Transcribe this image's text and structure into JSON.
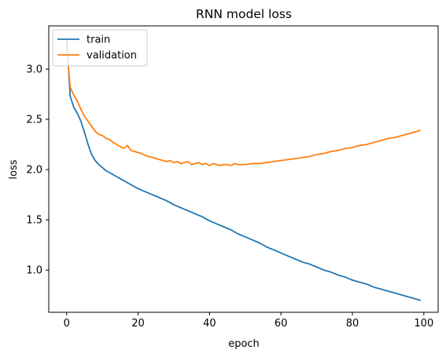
{
  "chart_data": {
    "type": "line",
    "title": "RNN model loss",
    "xlabel": "epoch",
    "ylabel": "loss",
    "xlim": [
      -5,
      104
    ],
    "ylim": [
      0.58,
      3.43
    ],
    "xticks": [
      0,
      20,
      40,
      60,
      80,
      100
    ],
    "yticks": [
      1.0,
      1.5,
      2.0,
      2.5,
      3.0
    ],
    "grid": false,
    "legend_position": "top-left",
    "series": [
      {
        "name": "train",
        "color": "#1f77b4",
        "x": [
          0,
          1,
          2,
          3,
          4,
          5,
          6,
          7,
          8,
          9,
          10,
          11,
          12,
          13,
          14,
          15,
          16,
          17,
          18,
          19,
          20,
          22,
          24,
          26,
          28,
          30,
          32,
          34,
          36,
          38,
          40,
          42,
          44,
          46,
          48,
          50,
          52,
          54,
          56,
          58,
          60,
          62,
          64,
          66,
          68,
          70,
          72,
          74,
          76,
          78,
          80,
          82,
          84,
          86,
          88,
          90,
          92,
          94,
          96,
          98,
          99
        ],
        "y": [
          3.31,
          2.73,
          2.62,
          2.56,
          2.48,
          2.37,
          2.25,
          2.15,
          2.09,
          2.05,
          2.02,
          1.99,
          1.97,
          1.95,
          1.93,
          1.91,
          1.89,
          1.87,
          1.85,
          1.83,
          1.81,
          1.78,
          1.75,
          1.72,
          1.69,
          1.65,
          1.62,
          1.59,
          1.56,
          1.53,
          1.49,
          1.46,
          1.43,
          1.4,
          1.36,
          1.33,
          1.3,
          1.27,
          1.23,
          1.2,
          1.17,
          1.14,
          1.11,
          1.08,
          1.06,
          1.03,
          1.0,
          0.98,
          0.95,
          0.93,
          0.9,
          0.88,
          0.86,
          0.83,
          0.81,
          0.79,
          0.77,
          0.75,
          0.73,
          0.71,
          0.7
        ]
      },
      {
        "name": "validation",
        "color": "#ff7f0e",
        "x": [
          0,
          1,
          2,
          3,
          4,
          5,
          6,
          7,
          8,
          9,
          10,
          11,
          12,
          13,
          14,
          15,
          16,
          17,
          18,
          19,
          20,
          21,
          22,
          23,
          24,
          25,
          26,
          27,
          28,
          29,
          30,
          31,
          32,
          33,
          34,
          35,
          36,
          37,
          38,
          39,
          40,
          41,
          42,
          43,
          44,
          45,
          46,
          47,
          48,
          49,
          50,
          52,
          54,
          56,
          58,
          60,
          62,
          64,
          66,
          68,
          70,
          72,
          74,
          76,
          78,
          80,
          82,
          84,
          86,
          88,
          90,
          92,
          94,
          96,
          98,
          99
        ],
        "y": [
          3.22,
          2.82,
          2.74,
          2.68,
          2.6,
          2.53,
          2.48,
          2.43,
          2.38,
          2.35,
          2.34,
          2.31,
          2.3,
          2.27,
          2.25,
          2.23,
          2.21,
          2.24,
          2.19,
          2.18,
          2.17,
          2.16,
          2.14,
          2.13,
          2.12,
          2.11,
          2.1,
          2.09,
          2.08,
          2.09,
          2.07,
          2.08,
          2.06,
          2.07,
          2.08,
          2.05,
          2.06,
          2.07,
          2.05,
          2.06,
          2.04,
          2.06,
          2.05,
          2.04,
          2.05,
          2.05,
          2.04,
          2.06,
          2.05,
          2.05,
          2.05,
          2.06,
          2.06,
          2.07,
          2.08,
          2.09,
          2.1,
          2.11,
          2.12,
          2.13,
          2.15,
          2.16,
          2.18,
          2.19,
          2.21,
          2.22,
          2.24,
          2.25,
          2.27,
          2.29,
          2.31,
          2.32,
          2.34,
          2.36,
          2.38,
          2.39
        ]
      }
    ]
  }
}
